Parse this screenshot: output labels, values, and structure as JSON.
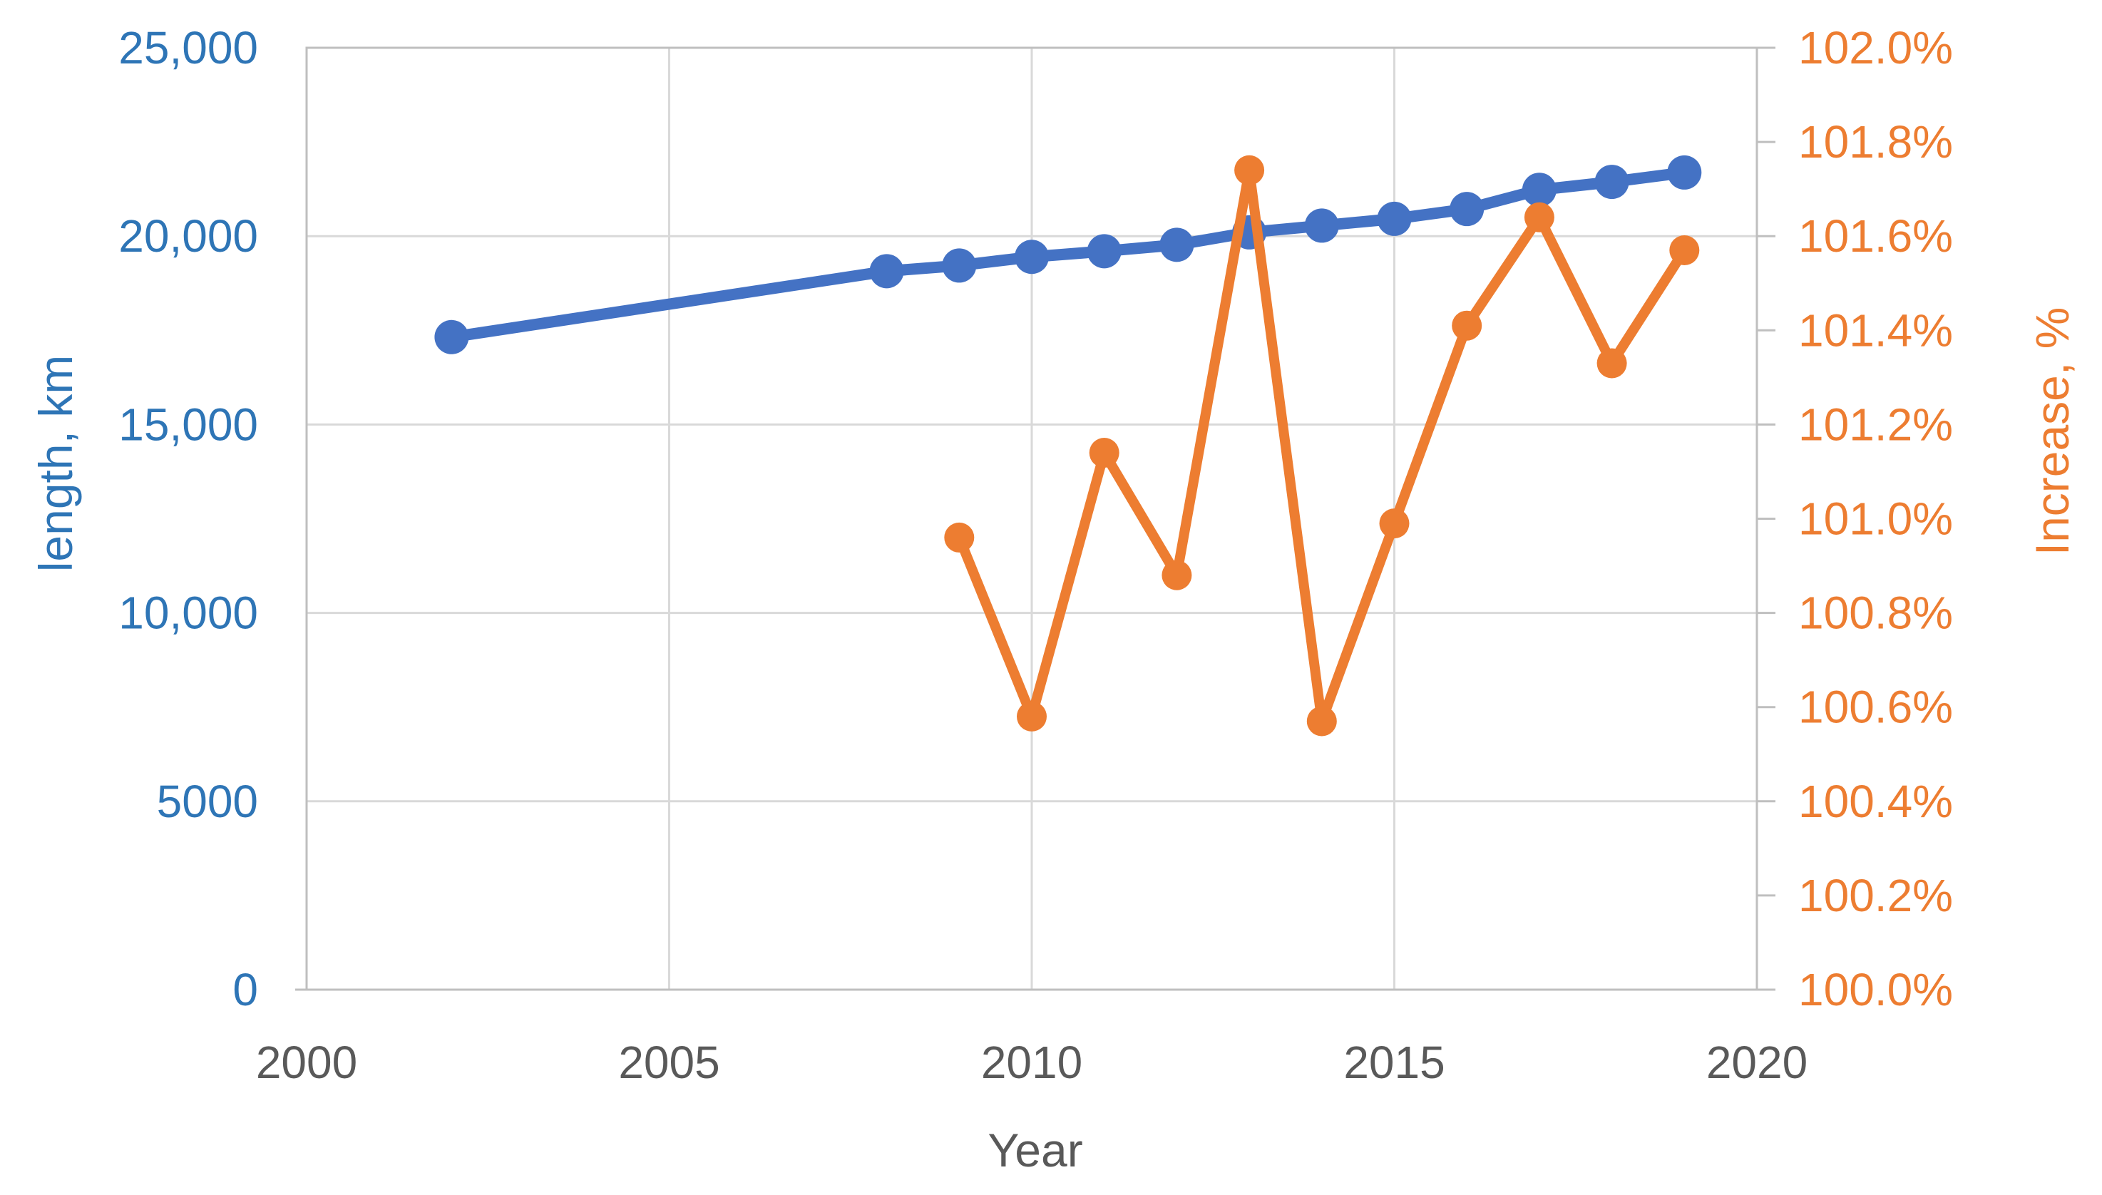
{
  "chart_data": {
    "type": "line",
    "title": "",
    "xlabel": "Year",
    "ylabel_left": "length, km",
    "ylabel_right": "Increase, %",
    "legend": "none",
    "grid": "on",
    "x_axis": {
      "min": 2000,
      "max": 2020,
      "ticks": [
        {
          "v": 2000,
          "label": "2000"
        },
        {
          "v": 2005,
          "label": "2005"
        },
        {
          "v": 2010,
          "label": "2010"
        },
        {
          "v": 2015,
          "label": "2015"
        },
        {
          "v": 2020,
          "label": "2020"
        }
      ]
    },
    "y_left": {
      "min": 0,
      "max": 25000,
      "ticks": [
        {
          "v": 25000,
          "label": "25,000"
        },
        {
          "v": 20000,
          "label": "20,000"
        },
        {
          "v": 15000,
          "label": "15,000"
        },
        {
          "v": 10000,
          "label": "10,000"
        },
        {
          "v": 5000,
          "label": "5000"
        },
        {
          "v": 0,
          "label": "0"
        }
      ]
    },
    "y_right": {
      "min": 100.0,
      "max": 102.0,
      "ticks": [
        {
          "v": 102.0,
          "label": "102.0%"
        },
        {
          "v": 101.8,
          "label": "101.8%"
        },
        {
          "v": 101.6,
          "label": "101.6%"
        },
        {
          "v": 101.4,
          "label": "101.4%"
        },
        {
          "v": 101.2,
          "label": "101.2%"
        },
        {
          "v": 101.0,
          "label": "101.0%"
        },
        {
          "v": 100.8,
          "label": "100.8%"
        },
        {
          "v": 100.6,
          "label": "100.6%"
        },
        {
          "v": 100.4,
          "label": "100.4%"
        },
        {
          "v": 100.2,
          "label": "100.2%"
        },
        {
          "v": 100.0,
          "label": "100.0%"
        }
      ]
    },
    "series": [
      {
        "name": "length, km",
        "axis": "left",
        "color": "#4472C4",
        "marker_radius": 24,
        "line_width": 16,
        "x": [
          2002,
          2008,
          2009,
          2010,
          2011,
          2012,
          2013,
          2014,
          2015,
          2016,
          2017,
          2018,
          2019
        ],
        "y": [
          17320,
          19070,
          19220,
          19450,
          19600,
          19770,
          20100,
          20280,
          20460,
          20720,
          21230,
          21440,
          21690
        ]
      },
      {
        "name": "Increase, %",
        "axis": "right",
        "color": "#ED7D31",
        "marker_radius": 21,
        "line_width": 14,
        "x": [
          2009,
          2010,
          2011,
          2012,
          2013,
          2014,
          2015,
          2016,
          2017,
          2018,
          2019
        ],
        "y": [
          100.96,
          100.58,
          101.14,
          100.88,
          101.74,
          100.57,
          100.99,
          101.41,
          101.64,
          101.33,
          101.57
        ]
      }
    ],
    "colors": {
      "left_axis_text": "#2E75B6",
      "right_axis_text": "#ED7D31",
      "x_axis_text": "#595959",
      "gridline": "#D9D9D9",
      "plot_border": "#BFBFBF"
    }
  }
}
